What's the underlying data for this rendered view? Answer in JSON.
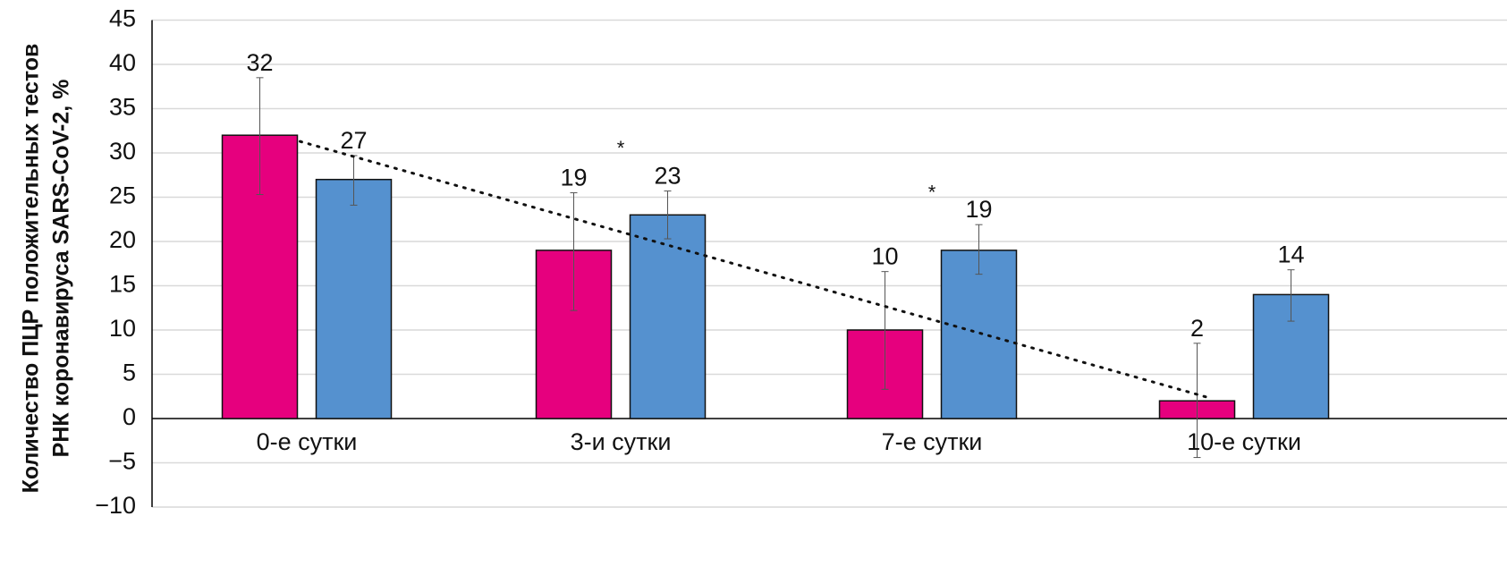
{
  "chart_data": {
    "type": "bar",
    "categories": [
      "0-е сутки",
      "3-и сутки",
      "7-е сутки",
      "10-е сутки"
    ],
    "series": [
      {
        "color": "#e6007e",
        "values": [
          32,
          19,
          10,
          2
        ],
        "labels": [
          "32",
          "19",
          "10",
          "2"
        ],
        "error_low": [
          25.3,
          12.2,
          3.3,
          -4.4
        ],
        "error_high": [
          38.5,
          25.5,
          16.6,
          8.5
        ]
      },
      {
        "color": "#5591cf",
        "values": [
          27,
          23,
          19,
          14
        ],
        "labels": [
          "27",
          "23",
          "19",
          "14"
        ],
        "error_low": [
          24.1,
          20.3,
          16.3,
          11.0
        ],
        "error_high": [
          29.7,
          25.7,
          21.9,
          16.8
        ]
      }
    ],
    "trendline": {
      "series_index": 0,
      "style": "dotted",
      "from": [
        31.3
      ],
      "to": [
        2.3
      ]
    },
    "annotations": [
      {
        "text": "*",
        "category_index": 1,
        "y": 31
      },
      {
        "text": "*",
        "category_index": 2,
        "y": 26
      }
    ],
    "ylabel_lines": [
      "Количество ПЦР положительных тестов",
      "РНК коронавируса SARS-CoV-2, %"
    ],
    "ylim": [
      -10,
      45
    ],
    "yticks": [
      45,
      40,
      35,
      30,
      25,
      20,
      15,
      10,
      5,
      0,
      -5,
      -10
    ],
    "ytick_labels": [
      "45",
      "40",
      "35",
      "30",
      "25",
      "20",
      "15",
      "10",
      "5",
      "0",
      "−5",
      "−10"
    ],
    "grid": true
  }
}
